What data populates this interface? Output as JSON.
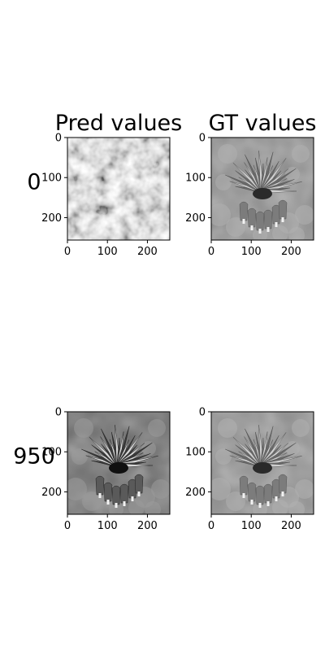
{
  "chart_data": {
    "type": "image-grid",
    "columns": [
      "Pred values",
      "GT values"
    ],
    "rows": [
      {
        "label": "0",
        "panels": [
          "noise",
          "flower"
        ]
      },
      {
        "label": "950",
        "panels": [
          "flower-contrast",
          "flower"
        ]
      }
    ],
    "image_size": [
      256,
      256
    ],
    "xticks": [
      0,
      100,
      200
    ],
    "yticks": [
      0,
      100,
      200
    ],
    "colormap": "gray"
  }
}
